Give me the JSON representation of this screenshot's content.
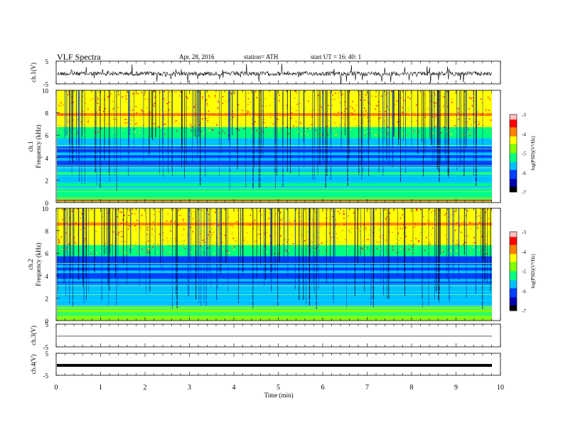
{
  "header": {
    "title": "VLF  Spectra",
    "date": "Apr. 28,  2016",
    "station": "station= ATH",
    "start": "start  UT  =   16: 40: 1"
  },
  "chart_data": [
    {
      "type": "line",
      "ylabel": "ch.1(V)",
      "yticks": [
        "5",
        "-5"
      ],
      "ylim": [
        -5,
        5
      ],
      "xlim": [
        0,
        10
      ],
      "description_values": {
        "baseline": -0.5,
        "range": [
          -5,
          5
        ]
      }
    },
    {
      "type": "heatmap",
      "ylabel_top": "ch.1",
      "ylabel": "Frequency  (kHz)",
      "ylim": [
        0,
        10
      ],
      "yticks": [
        "0",
        "2",
        "4",
        "6",
        "8",
        "10"
      ],
      "xlim": [
        0,
        9.8
      ],
      "colorbar": {
        "label": "log(PSD)(V²/Hz)",
        "range": [
          -7,
          -3
        ],
        "ticks": [
          "-3",
          "-4",
          "-5",
          "-6",
          "-7"
        ]
      }
    },
    {
      "type": "heatmap",
      "ylabel_top": "ch.2",
      "ylabel": "Frequency  (kHz)",
      "ylim": [
        0,
        10
      ],
      "yticks": [
        "0",
        "2",
        "4",
        "6",
        "8",
        "10"
      ],
      "xlim": [
        0,
        9.8
      ],
      "colorbar": {
        "label": "log(PSD)(V²/Hz)",
        "range": [
          -7,
          -3
        ],
        "ticks": [
          "-3",
          "-4",
          "-5",
          "-6",
          "-7"
        ]
      }
    },
    {
      "type": "line",
      "ylabel": "ch.3(V)",
      "yticks": [
        "5",
        "-5"
      ],
      "ylim": [
        -5,
        5
      ],
      "xlim": [
        0,
        10
      ]
    },
    {
      "type": "line",
      "ylabel": "ch.4(V)",
      "yticks": [
        "5",
        "-5"
      ],
      "ylim": [
        -5,
        5
      ],
      "xlim": [
        0,
        10
      ],
      "xlabel": "Time  (min)",
      "xticks": [
        "0",
        "1",
        "2",
        "3",
        "4",
        "5",
        "6",
        "7",
        "8",
        "9",
        "10"
      ]
    }
  ],
  "colors": {
    "scale": [
      "#000000",
      "#0000b0",
      "#0040ff",
      "#00c0ff",
      "#00ff80",
      "#80ff00",
      "#ffff00",
      "#ff8000",
      "#ff0000",
      "#ffc0c0"
    ]
  }
}
